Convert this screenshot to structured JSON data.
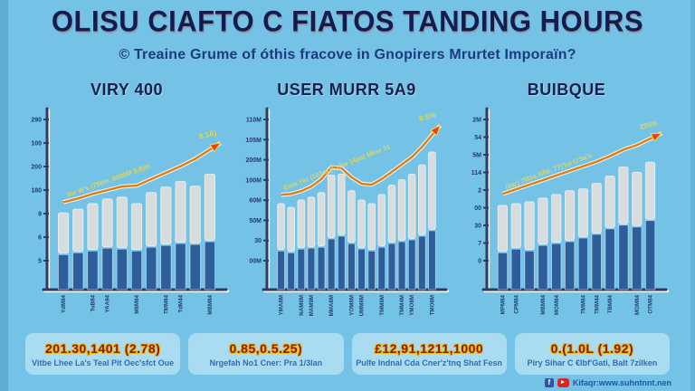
{
  "title": "OLISU CIAFTO C FIATOS TANDING HOURS",
  "subtitle": "© Treaine Grume of óthis fracove in Gnopirers Mrurtet Imporaïn?",
  "colors": {
    "background": "#74c3e7",
    "title_navy": "#141c4d",
    "axis": "#2b3a66",
    "bar_dark_blue": "#2e5e99",
    "bar_light_gray": "#d9dcdd",
    "trend_orange": "#e07c0e",
    "arrow_red": "#e2470e",
    "annotation_yellow": "#e3d65a",
    "stat_value_red": "#8a1a10",
    "stat_value_outline": "#e9b81e",
    "stat_label_blue": "#2e6cb8"
  },
  "chart_data": [
    {
      "type": "bar",
      "title": "VIRY 400",
      "ylim": [
        0,
        185
      ],
      "grid": false,
      "legend": "none",
      "y_ticks": [
        "290",
        "100",
        "200",
        "180",
        "9",
        "6",
        "5"
      ],
      "x_labels": [
        "YdM84",
        "TuB84",
        "YAA94",
        "M8M84",
        "TMM84",
        "TdM44",
        "MBM84"
      ],
      "series": [
        {
          "name": "dark-segment",
          "values": [
            38,
            40,
            42,
            45,
            44,
            42,
            46,
            48,
            50,
            49,
            52
          ]
        },
        {
          "name": "gray-segment",
          "values": [
            44,
            46,
            50,
            52,
            55,
            50,
            58,
            62,
            66,
            62,
            72
          ]
        }
      ],
      "trend": {
        "values": [
          95,
          99,
          104,
          108,
          112,
          113,
          120,
          127,
          134,
          142,
          152
        ],
        "annotation": "Yor W's (750m, 8090M 5.8)m",
        "tip_label": "8.1A)"
      }
    },
    {
      "type": "bar",
      "title": "USER MURR 5A9",
      "ylim": [
        0,
        185
      ],
      "grid": false,
      "legend": "none",
      "y_ticks": [
        "110M",
        "105M",
        "200M",
        "100M",
        "60M",
        "50M",
        "30",
        "00M"
      ],
      "x_labels": [
        "YMA8M",
        "NAM8M",
        "MAM9M",
        "MMA8M",
        "YOM8M",
        "UMM8M",
        "TMM8M",
        "TMM4M",
        "YMO8M",
        "TMO8M"
      ],
      "series": [
        {
          "name": "dark-segment",
          "values": [
            42,
            40,
            44,
            45,
            46,
            55,
            58,
            50,
            44,
            42,
            46,
            50,
            52,
            54,
            58,
            64
          ]
        },
        {
          "name": "gray-segment",
          "values": [
            50,
            48,
            52,
            54,
            58,
            68,
            66,
            56,
            52,
            50,
            56,
            62,
            66,
            70,
            76,
            84
          ]
        }
      ],
      "trend": {
        "values": [
          103,
          104,
          107,
          112,
          120,
          133,
          132,
          122,
          115,
          114,
          120,
          128,
          136,
          144,
          155,
          168
        ],
        "annotation": "Eata.Yar (103m (Cr0ar-)4pa) Mkar 31",
        "tip_label": "8.S%"
      }
    },
    {
      "type": "bar",
      "title": "BUIBQUE",
      "ylim": [
        0,
        185
      ],
      "grid": false,
      "legend": "none",
      "y_ticks": [
        "2M",
        "54",
        "5M",
        "114",
        "2",
        "00",
        "30",
        "7",
        "0"
      ],
      "x_labels": [
        "MPM84",
        "CPM84",
        "MBM84",
        "MOM84",
        "TMM84",
        "TMM44",
        "TBM84",
        "MOM84",
        "OTM84"
      ],
      "series": [
        {
          "name": "dark-segment",
          "values": [
            40,
            44,
            42,
            48,
            50,
            52,
            56,
            60,
            66,
            70,
            68,
            75
          ]
        },
        {
          "name": "gray-segment",
          "values": [
            50,
            48,
            52,
            50,
            52,
            54,
            52,
            54,
            56,
            62,
            58,
            62
          ]
        }
      ],
      "trend": {
        "values": [
          104,
          109,
          114,
          119,
          124,
          129,
          134,
          139,
          145,
          152,
          157,
          164
        ],
        "annotation": "(9ar) 7M0a NfM, 77)'ba O'9a'a",
        "tip_label": "225%"
      }
    }
  ],
  "stats": {
    "items": [
      {
        "value": "201.30,1401 (2.78)",
        "label": "Vitbe Lhee La's Teal Pit Oec'sfct Oue"
      },
      {
        "value": "0.85,0.5.25)",
        "label": "Nrgefah No1 Cner: Pra 1/3lan"
      },
      {
        "value": "£12,91,1211,1000",
        "label": "Pulfe Indnal Cda Cner'z'tnq Shat Fesn"
      },
      {
        "value": "0.(1.0L (1.92)",
        "label": "Piry Sihar C €lbf'Gati, Balt 7zilken"
      }
    ]
  },
  "footer": {
    "facebook_icon_glyph": "f",
    "url_text": "Kifaqr:www.suhntnnt.nen"
  }
}
